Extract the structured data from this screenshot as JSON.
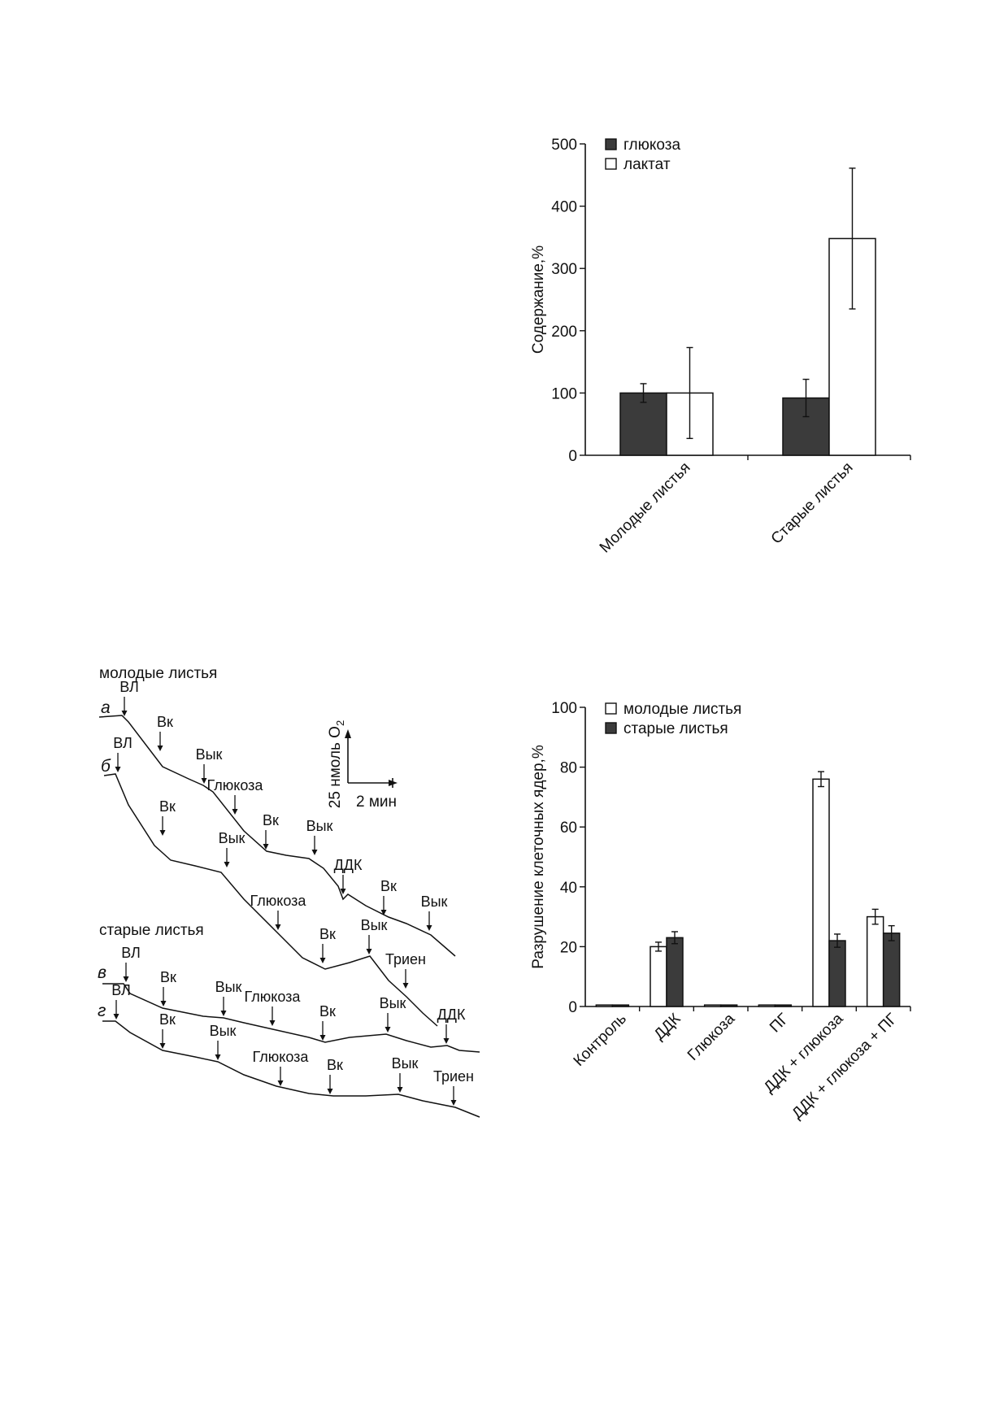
{
  "colors": {
    "dark_bar": "#3b3b3b",
    "light_bar": "#ffffff",
    "line": "#111111"
  },
  "chart_data": [
    {
      "type": "bar",
      "ylabel": "Содержание,%",
      "ylim": [
        0,
        500
      ],
      "yticks": [
        "0",
        "100",
        "200",
        "300",
        "400",
        "500"
      ],
      "categories": [
        "Молодые листья",
        "Старые листья"
      ],
      "legend_position": "top-left",
      "series": [
        {
          "name": "глюкоза",
          "values": [
            100,
            92
          ],
          "errors": [
            15,
            30
          ],
          "fill": "dark"
        },
        {
          "name": "лактат",
          "values": [
            100,
            348
          ],
          "errors": [
            73,
            113
          ],
          "fill": "light"
        }
      ]
    },
    {
      "type": "line",
      "group_labels": [
        "молодые листья",
        "старые листья"
      ],
      "scale_bar": {
        "vertical": "25 нмоль O",
        "vertical_subscript": "2",
        "horizontal": "2 мин"
      },
      "traces": [
        {
          "letter": "а",
          "events": [
            "ВЛ",
            "Вк",
            "Вык",
            "Глюкоза",
            "Вк",
            "Вык",
            "ДДК",
            "Вк",
            "Вык"
          ]
        },
        {
          "letter": "б",
          "events": [
            "ВЛ",
            "Вк",
            "Вык",
            "Глюкоза",
            "Вк",
            "Вык",
            "Триен"
          ]
        },
        {
          "letter": "в",
          "events": [
            "ВЛ",
            "Вк",
            "Вык",
            "Глюкоза",
            "Вк",
            "Вык",
            "ДДК"
          ]
        },
        {
          "letter": "г",
          "events": [
            "ВЛ",
            "Вк",
            "Вык",
            "Глюкоза",
            "Вк",
            "Вык",
            "Триен"
          ]
        }
      ]
    },
    {
      "type": "bar",
      "ylabel": "Разрушение клеточных ядер,%",
      "ylim": [
        0,
        100
      ],
      "yticks": [
        "0",
        "20",
        "40",
        "60",
        "80",
        "100"
      ],
      "categories": [
        "Контроль",
        "ДДК",
        "Глюкоза",
        "ПГ",
        "ДДК + глюкоза",
        "ДДК + глюкоза + ПГ"
      ],
      "legend_position": "top-left",
      "series": [
        {
          "name": "молодые листья",
          "values": [
            0.5,
            20,
            0.5,
            0.5,
            76,
            30
          ],
          "errors": [
            0,
            1.5,
            0,
            0,
            2.5,
            2.5
          ],
          "fill": "light"
        },
        {
          "name": "старые листья",
          "values": [
            0.5,
            23,
            0.5,
            0.5,
            22,
            24.5
          ],
          "errors": [
            0,
            2,
            0,
            0,
            2.2,
            2.5
          ],
          "fill": "dark"
        }
      ]
    }
  ]
}
